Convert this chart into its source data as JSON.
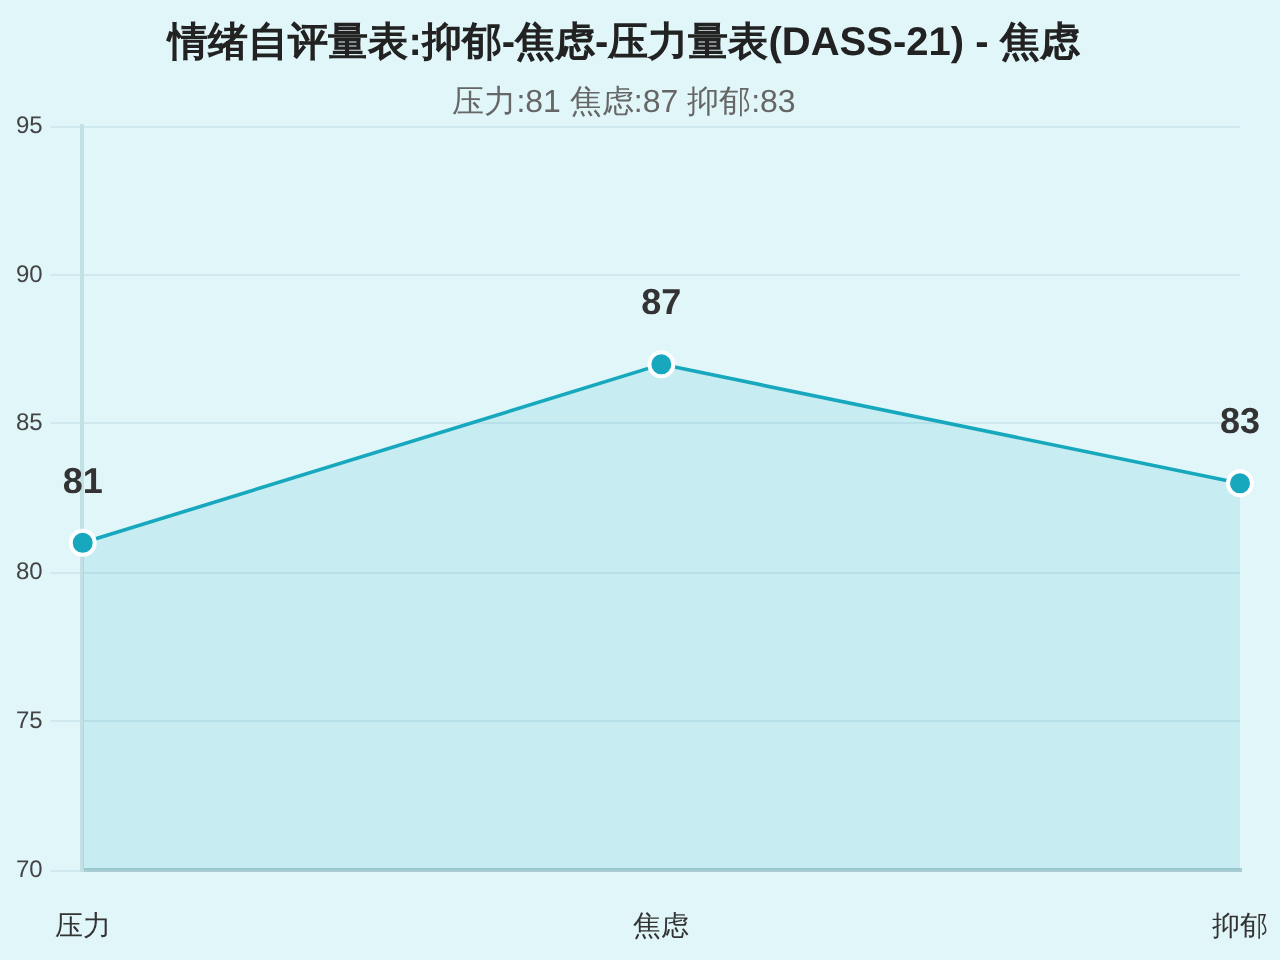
{
  "chart_data": {
    "type": "area",
    "title": "情绪自评量表:抑郁-焦虑-压力量表(DASS-21) - 焦虑",
    "subtitle": "压力:81 焦虑:87 抑郁:83",
    "categories": [
      "压力",
      "焦虑",
      "抑郁"
    ],
    "values": [
      81,
      87,
      83
    ],
    "color": "#17a8be",
    "ylim": [
      70,
      95
    ],
    "yticks": [
      70,
      75,
      80,
      85,
      90,
      95
    ],
    "grid": "y",
    "legend": false,
    "marker": "circle",
    "data_labels": true
  }
}
